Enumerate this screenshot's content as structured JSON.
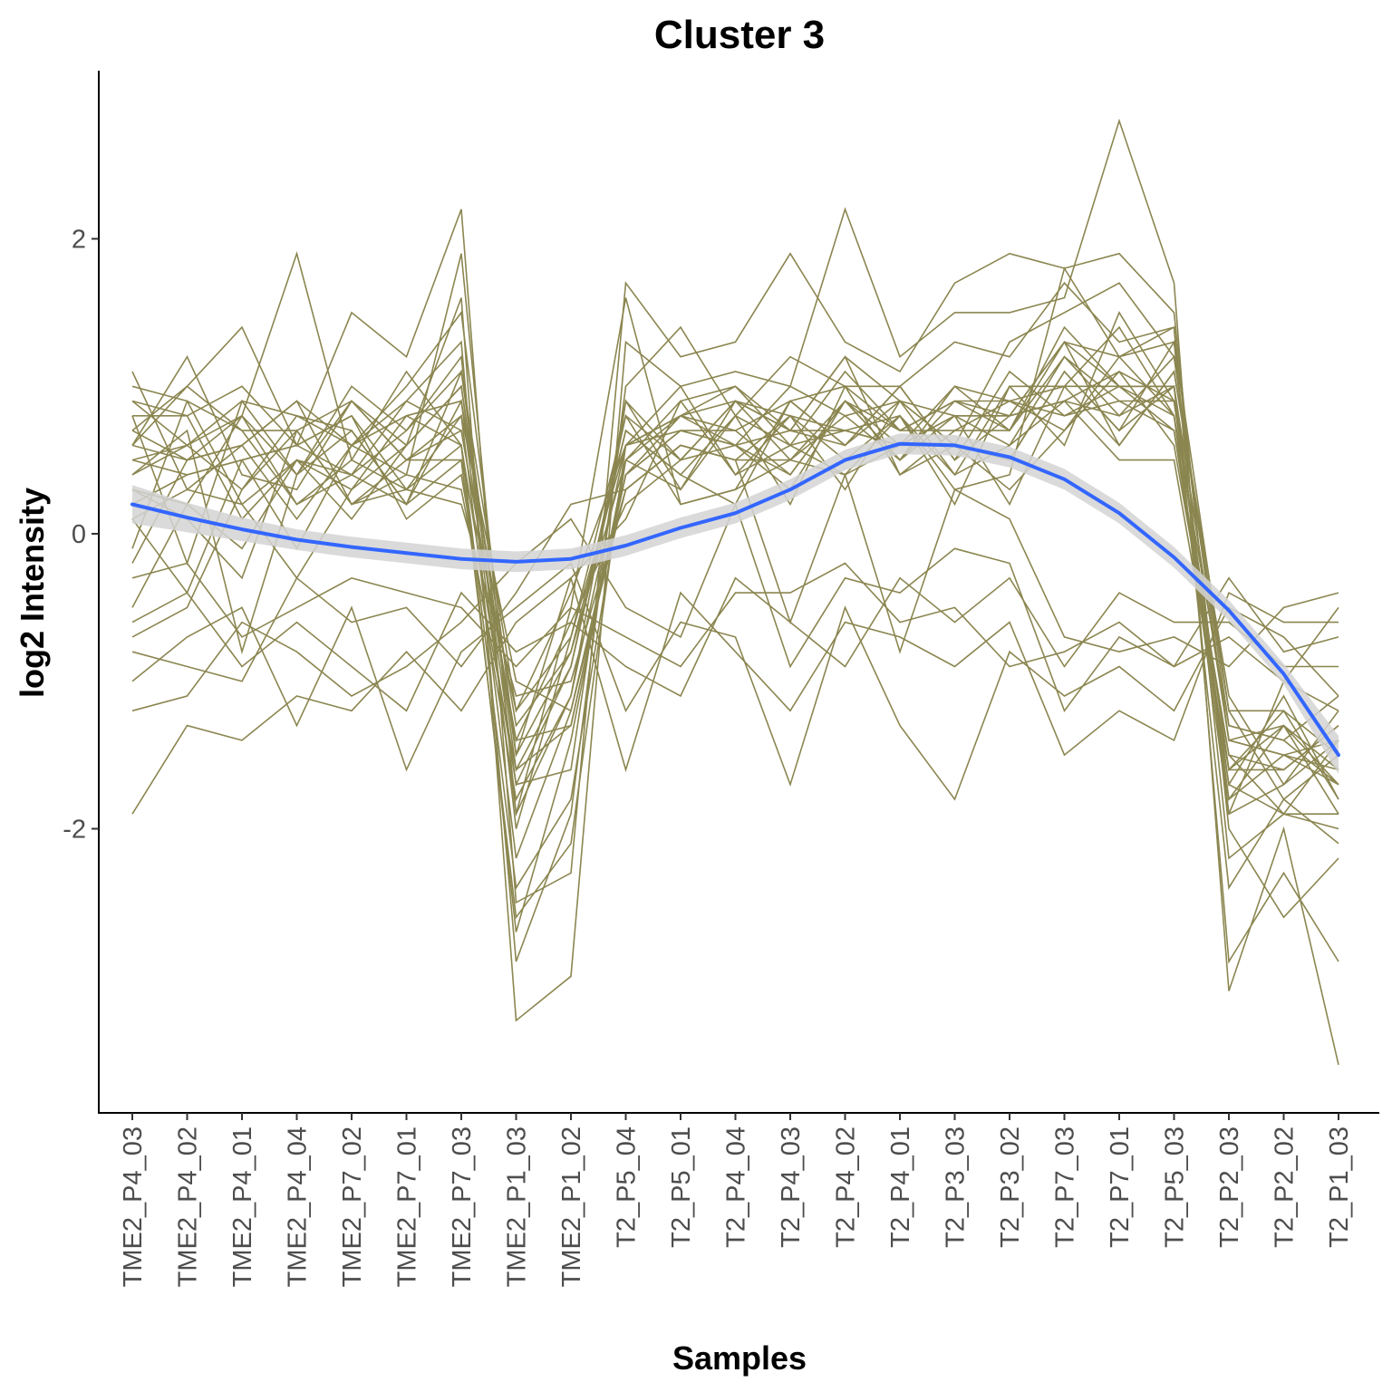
{
  "chart_data": {
    "type": "line",
    "title": "Cluster 3",
    "xlabel": "Samples",
    "ylabel": "log2 Intensity",
    "ylim": [
      -3.9,
      3.1
    ],
    "y_ticks": [
      -2,
      0,
      2
    ],
    "y_tick_labels": [
      "-2",
      "0",
      "2"
    ],
    "grid": false,
    "legend": "none",
    "colors": {
      "profile_lines": "#8b8650",
      "trend_line": "#3366ff",
      "confidence_band": "#d3d3d3",
      "axis": "#000000",
      "tick_label": "#4d4d4d"
    },
    "categories": [
      "TME2_P4_03",
      "TME2_P4_02",
      "TME2_P4_01",
      "TME2_P4_04",
      "TME2_P7_02",
      "TME2_P7_01",
      "TME2_P7_03",
      "TME2_P1_03",
      "TME2_P1_02",
      "T2_P5_04",
      "T2_P5_01",
      "T2_P4_04",
      "T2_P4_03",
      "T2_P4_02",
      "T2_P4_01",
      "T2_P3_03",
      "T2_P3_02",
      "T2_P7_03",
      "T2_P7_01",
      "T2_P5_03",
      "T2_P2_03",
      "T2_P2_02",
      "T2_P1_03"
    ],
    "trend": {
      "values": [
        0.2,
        0.11,
        0.03,
        -0.04,
        -0.09,
        -0.13,
        -0.17,
        -0.19,
        -0.17,
        -0.08,
        0.04,
        0.14,
        0.3,
        0.5,
        0.61,
        0.6,
        0.52,
        0.37,
        0.14,
        -0.16,
        -0.52,
        -0.95,
        -1.5
      ],
      "se_low": [
        0.07,
        0.01,
        -0.05,
        -0.11,
        -0.16,
        -0.2,
        -0.24,
        -0.26,
        -0.24,
        -0.15,
        -0.03,
        0.07,
        0.23,
        0.43,
        0.54,
        0.53,
        0.45,
        0.3,
        0.07,
        -0.23,
        -0.59,
        -1.02,
        -1.63
      ],
      "se_high": [
        0.33,
        0.21,
        0.11,
        0.03,
        -0.02,
        -0.06,
        -0.1,
        -0.12,
        -0.1,
        -0.01,
        0.11,
        0.21,
        0.37,
        0.57,
        0.68,
        0.67,
        0.59,
        0.44,
        0.21,
        -0.09,
        -0.45,
        -0.88,
        -1.37
      ]
    },
    "series": [
      {
        "values": [
          0.9,
          0.8,
          1.0,
          0.6,
          0.4,
          0.7,
          1.1,
          -1.6,
          -0.9,
          0.8,
          0.5,
          0.9,
          0.7,
          1.2,
          0.9,
          0.6,
          1.3,
          1.5,
          1.7,
          1.2,
          -1.4,
          -1.5,
          -1.6
        ]
      },
      {
        "values": [
          0.6,
          1.2,
          0.4,
          0.3,
          0.9,
          0.5,
          0.8,
          -2.2,
          -1.2,
          0.4,
          0.7,
          0.6,
          1.0,
          0.8,
          0.5,
          1.0,
          0.7,
          1.2,
          0.9,
          0.9,
          -1.6,
          -1.2,
          -1.8
        ]
      },
      {
        "values": [
          0.3,
          0.1,
          -0.3,
          0.7,
          0.2,
          0.4,
          1.9,
          -1.9,
          -0.5,
          1.6,
          0.2,
          0.3,
          0.5,
          0.4,
          0.8,
          0.3,
          0.4,
          1.8,
          1.2,
          1.4,
          -1.9,
          -1.0,
          -1.2
        ]
      },
      {
        "values": [
          -0.2,
          0.5,
          0.6,
          0.1,
          0.6,
          1.0,
          1.5,
          -1.5,
          -0.3,
          0.1,
          0.9,
          1.0,
          0.6,
          1.1,
          0.7,
          0.9,
          0.8,
          1.3,
          0.6,
          1.1,
          -1.1,
          -1.7,
          -1.4
        ]
      },
      {
        "values": [
          0.8,
          -0.2,
          0.9,
          0.4,
          0.7,
          0.2,
          0.9,
          -1.3,
          -0.8,
          0.7,
          0.4,
          0.2,
          0.9,
          0.6,
          1.0,
          0.5,
          1.1,
          0.8,
          1.0,
          0.7,
          -1.7,
          -1.9,
          -1.9
        ]
      },
      {
        "values": [
          1.0,
          0.9,
          0.2,
          -0.3,
          0.3,
          0.8,
          0.6,
          -2.7,
          -1.4,
          0.5,
          0.8,
          0.7,
          0.4,
          0.9,
          0.6,
          0.8,
          0.2,
          1.0,
          1.4,
          0.8,
          -1.3,
          -1.4,
          -1.1
        ]
      },
      {
        "values": [
          0.5,
          0.6,
          0.8,
          1.9,
          0.5,
          0.3,
          0.2,
          -1.1,
          -1.0,
          0.3,
          0.6,
          0.5,
          0.8,
          0.3,
          0.9,
          0.4,
          0.6,
          0.9,
          0.8,
          1.0,
          -1.8,
          -1.3,
          -1.7
        ]
      },
      {
        "values": [
          -0.5,
          0.2,
          -0.1,
          0.5,
          0.1,
          0.6,
          1.0,
          -1.7,
          -1.6,
          0.9,
          0.3,
          0.8,
          0.2,
          1.0,
          0.4,
          0.7,
          0.9,
          0.7,
          1.1,
          0.6,
          -1.5,
          -1.6,
          -1.3
        ]
      },
      {
        "values": [
          0.2,
          0.4,
          0.5,
          0.6,
          0.8,
          0.1,
          0.4,
          -1.8,
          -1.1,
          0.6,
          1.0,
          0.4,
          0.6,
          0.7,
          0.6,
          0.6,
          0.5,
          1.1,
          0.7,
          1.3,
          -1.2,
          -1.8,
          -1.5
        ]
      },
      {
        "values": [
          0.7,
          1.0,
          0.7,
          0.2,
          0.4,
          0.9,
          0.7,
          -1.4,
          -0.6,
          0.2,
          0.5,
          0.9,
          0.8,
          0.5,
          0.8,
          0.2,
          1.0,
          0.6,
          1.5,
          0.9,
          -1.7,
          -1.1,
          -1.8
        ]
      },
      {
        "values": [
          -0.7,
          -0.5,
          0.3,
          0.8,
          0.6,
          0.4,
          0.3,
          -1.6,
          -1.3,
          0.4,
          0.7,
          0.6,
          0.3,
          0.9,
          0.7,
          0.9,
          0.7,
          1.4,
          1.0,
          1.0,
          -1.4,
          -1.5,
          -1.4
        ]
      },
      {
        "values": [
          0.4,
          0.7,
          -0.8,
          0.4,
          1.0,
          0.7,
          1.2,
          -2.0,
          -0.7,
          0.8,
          0.2,
          0.3,
          0.9,
          0.6,
          1.0,
          0.5,
          0.8,
          0.9,
          0.5,
          0.5,
          -1.6,
          -1.3,
          -1.6
        ]
      },
      {
        "values": [
          1.1,
          0.3,
          0.6,
          0.9,
          0.2,
          0.5,
          0.5,
          -1.2,
          -0.4,
          0.6,
          0.8,
          1.0,
          0.7,
          1.2,
          0.4,
          0.6,
          0.3,
          0.7,
          1.2,
          0.8,
          -1.9,
          -1.7,
          -1.2
        ]
      },
      {
        "values": [
          0.1,
          -0.4,
          0.5,
          0.6,
          0.8,
          0.3,
          0.8,
          -1.0,
          -1.2,
          0.3,
          0.6,
          0.5,
          0.5,
          0.8,
          0.9,
          0.8,
          0.6,
          1.2,
          0.8,
          1.2,
          -1.3,
          -1.4,
          -1.7
        ]
      },
      {
        "values": [
          0.6,
          0.5,
          0.8,
          0.2,
          0.5,
          1.1,
          0.6,
          -1.7,
          -0.9,
          0.7,
          0.4,
          0.8,
          0.6,
          0.4,
          0.6,
          1.0,
          0.9,
          0.8,
          0.9,
          0.7,
          -1.5,
          -1.9,
          -1.4
        ]
      },
      {
        "values": [
          0.8,
          0.8,
          0.1,
          0.5,
          0.3,
          0.6,
          1.0,
          -1.5,
          -0.8,
          0.5,
          0.9,
          0.4,
          0.8,
          0.7,
          0.8,
          0.4,
          1.0,
          1.0,
          0.6,
          1.1,
          -1.2,
          -1.2,
          -1.5
        ]
      },
      {
        "values": [
          0.9,
          0.6,
          0.9,
          0.8,
          0.7,
          0.2,
          1.1,
          -1.2,
          -0.7,
          0.6,
          0.7,
          0.7,
          0.9,
          1.0,
          0.7,
          0.7,
          0.7,
          1.3,
          1.0,
          0.8,
          -1.8,
          -1.5,
          -1.7
        ]
      },
      {
        "values": [
          0.5,
          0.4,
          0.5,
          -0.1,
          0.6,
          0.8,
          0.9,
          -1.9,
          -1.1,
          0.9,
          0.5,
          0.6,
          0.4,
          0.9,
          0.5,
          0.8,
          0.8,
          0.9,
          1.1,
          0.9,
          -1.6,
          -1.6,
          -1.3
        ]
      },
      {
        "values": [
          -0.1,
          0.9,
          0.7,
          0.7,
          0.9,
          0.5,
          0.7,
          -1.4,
          -1.3,
          0.4,
          0.8,
          0.9,
          0.7,
          0.6,
          0.9,
          0.6,
          0.5,
          1.1,
          0.7,
          1.0,
          -1.4,
          -1.3,
          -1.9
        ]
      },
      {
        "values": [
          -0.8,
          -0.9,
          -1.0,
          -0.3,
          -0.6,
          -0.5,
          -0.9,
          -0.4,
          0.2,
          0.3,
          0.6,
          0.5,
          -0.6,
          0.4,
          -0.8,
          0.3,
          0.1,
          -0.7,
          -0.8,
          -0.7,
          -0.9,
          -0.5,
          -0.4
        ]
      },
      {
        "values": [
          -1.2,
          -1.1,
          -0.6,
          -0.8,
          -1.1,
          -0.9,
          -0.6,
          -0.2,
          0.1,
          -0.5,
          -0.7,
          0.2,
          -0.9,
          -0.3,
          -0.4,
          -0.1,
          -0.2,
          -1.2,
          -0.7,
          -0.9,
          -0.3,
          -0.8,
          -0.7
        ]
      },
      {
        "values": [
          -1.9,
          -1.3,
          -1.4,
          -1.1,
          -1.2,
          -0.8,
          -1.2,
          -0.6,
          -0.3,
          -1.6,
          -0.4,
          -0.8,
          -1.2,
          -0.6,
          -0.7,
          -0.9,
          -0.6,
          -1.5,
          -1.2,
          -1.4,
          -0.4,
          -0.6,
          -0.6
        ]
      },
      {
        "values": [
          -0.6,
          -0.4,
          -0.9,
          -0.6,
          -0.9,
          -1.2,
          -0.4,
          -0.8,
          -0.6,
          -0.9,
          -1.1,
          -0.3,
          -0.6,
          -0.9,
          -0.3,
          -0.6,
          -0.3,
          -0.9,
          -0.4,
          -0.6,
          -0.6,
          -0.9,
          -0.9
        ]
      },
      {
        "values": [
          -1.0,
          -0.7,
          -0.5,
          -1.3,
          -0.5,
          -1.6,
          -0.8,
          -0.5,
          -0.2,
          -1.2,
          -0.6,
          -0.7,
          -1.7,
          -0.5,
          -1.3,
          -1.8,
          -0.8,
          -1.1,
          -0.9,
          -1.2,
          -0.5,
          -0.7,
          -1.1
        ]
      },
      {
        "values": [
          -0.3,
          -0.2,
          -0.7,
          -0.5,
          -0.3,
          -0.4,
          -0.5,
          -0.9,
          -0.5,
          -0.7,
          -0.9,
          -0.4,
          -0.4,
          -0.2,
          -0.6,
          -0.5,
          -0.9,
          -0.8,
          -0.6,
          -0.9,
          -0.7,
          -1.0,
          -0.5
        ]
      },
      {
        "values": [
          0.6,
          1.0,
          1.4,
          0.6,
          1.5,
          1.2,
          2.2,
          -2.5,
          -2.3,
          1.7,
          1.2,
          1.3,
          1.9,
          1.3,
          1.1,
          1.7,
          1.9,
          1.8,
          1.9,
          1.5,
          -2.0,
          -2.6,
          -2.2
        ]
      },
      {
        "values": [
          0.3,
          0.2,
          0.8,
          0.4,
          0.9,
          0.6,
          1.6,
          -3.3,
          -3.0,
          1.3,
          1.0,
          1.1,
          1.0,
          2.2,
          1.2,
          1.5,
          1.5,
          1.6,
          2.8,
          1.7,
          -3.1,
          -2.0,
          -3.6
        ]
      },
      {
        "values": [
          0.7,
          0.5,
          0.6,
          0.9,
          0.6,
          0.9,
          1.3,
          -2.9,
          -1.9,
          1.0,
          1.4,
          0.8,
          1.2,
          1.0,
          1.0,
          1.3,
          1.2,
          1.7,
          1.3,
          1.4,
          -2.9,
          -2.3,
          -2.9
        ]
      },
      {
        "values": [
          0.1,
          0.3,
          0.2,
          0.5,
          0.4,
          0.2,
          0.5,
          -2.6,
          -2.1,
          0.6,
          0.8,
          0.6,
          0.7,
          0.7,
          0.6,
          0.8,
          0.8,
          1.3,
          1.2,
          1.3,
          -2.2,
          -1.9,
          -2.0
        ]
      },
      {
        "values": [
          0.4,
          0.6,
          0.3,
          0.7,
          0.2,
          0.3,
          0.6,
          -2.4,
          -1.8,
          0.5,
          0.3,
          0.9,
          0.5,
          0.9,
          0.5,
          0.9,
          0.9,
          1.0,
          1.0,
          1.0,
          -2.4,
          -1.8,
          -2.1
        ]
      }
    ]
  }
}
